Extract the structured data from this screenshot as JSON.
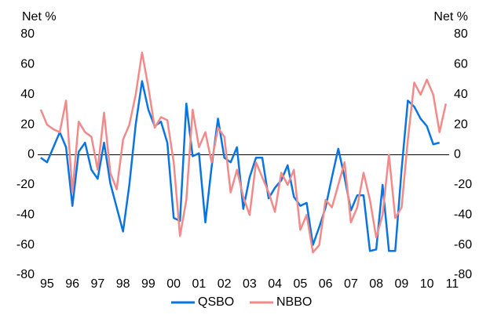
{
  "chart_data": {
    "type": "line",
    "ylabel": "Net %",
    "y2label": "Net %",
    "x": [
      1994.75,
      1995,
      1995.25,
      1995.5,
      1995.75,
      1996,
      1996.25,
      1996.5,
      1996.75,
      1997,
      1997.25,
      1997.5,
      1997.75,
      1998,
      1998.25,
      1998.5,
      1998.75,
      1999,
      1999.25,
      1999.5,
      1999.75,
      2000,
      2000.25,
      2000.5,
      2000.75,
      2001,
      2001.25,
      2001.5,
      2001.75,
      2002,
      2002.25,
      2002.5,
      2002.75,
      2003,
      2003.25,
      2003.5,
      2003.75,
      2004,
      2004.25,
      2004.5,
      2004.75,
      2005,
      2005.25,
      2005.5,
      2005.75,
      2006,
      2006.25,
      2006.5,
      2006.75,
      2007,
      2007.25,
      2007.5,
      2007.75,
      2008,
      2008.25,
      2008.5,
      2008.75,
      2009,
      2009.25,
      2009.5,
      2009.75,
      2010,
      2010.25,
      2010.5,
      2010.75
    ],
    "series": [
      {
        "name": "QSBO",
        "color": "#0a74e0",
        "values": [
          -2,
          -5,
          5,
          15,
          5,
          -34,
          2,
          8,
          -10,
          -16,
          8,
          -19,
          -35,
          -51,
          -20,
          20,
          49,
          30,
          19,
          22,
          8,
          -42,
          -44,
          34,
          -1,
          1,
          -45,
          -8,
          24,
          -2,
          -5,
          5,
          -36,
          -15,
          -2,
          -2,
          -29,
          -22,
          -17,
          -7,
          -28,
          -34,
          -32,
          -60,
          -48,
          -35,
          -15,
          4,
          -15,
          -37,
          -27,
          -27,
          -64,
          -63,
          -20,
          -64,
          -64,
          -10,
          36,
          32,
          24,
          19,
          7,
          8,
          null
        ]
      },
      {
        "name": "NBBO",
        "color": "#f28a8a",
        "values": [
          30,
          20,
          17,
          15,
          36,
          -25,
          22,
          15,
          12,
          -10,
          28,
          -12,
          -23,
          10,
          20,
          40,
          68,
          45,
          18,
          25,
          23,
          -5,
          -54,
          -30,
          30,
          5,
          15,
          -5,
          18,
          12,
          -25,
          -10,
          -28,
          -40,
          -5,
          -15,
          -25,
          -38,
          -12,
          -20,
          -10,
          -50,
          -40,
          -65,
          -60,
          -30,
          -35,
          -20,
          -5,
          -45,
          -35,
          -12,
          -30,
          -55,
          -40,
          0,
          -42,
          -35,
          10,
          48,
          40,
          50,
          40,
          15,
          34
        ]
      }
    ],
    "xlim": [
      1994.63,
      2010.88
    ],
    "xticks": [
      {
        "value": 1995,
        "label": "95"
      },
      {
        "value": 1996,
        "label": "96"
      },
      {
        "value": 1997,
        "label": "97"
      },
      {
        "value": 1998,
        "label": "98"
      },
      {
        "value": 1999,
        "label": "99"
      },
      {
        "value": 2000,
        "label": "00"
      },
      {
        "value": 2001,
        "label": "01"
      },
      {
        "value": 2002,
        "label": "02"
      },
      {
        "value": 2003,
        "label": "03"
      },
      {
        "value": 2004,
        "label": "04"
      },
      {
        "value": 2005,
        "label": "05"
      },
      {
        "value": 2006,
        "label": "06"
      },
      {
        "value": 2007,
        "label": "07"
      },
      {
        "value": 2008,
        "label": "08"
      },
      {
        "value": 2009,
        "label": "09"
      },
      {
        "value": 2010,
        "label": "10"
      },
      {
        "value": 2011,
        "label": "11"
      }
    ],
    "ylim": [
      -80,
      80
    ],
    "yticks": [
      -80,
      -60,
      -40,
      -20,
      0,
      20,
      40,
      60,
      80
    ],
    "y2lim": [
      -80,
      80
    ],
    "y2ticks": [
      -80,
      -60,
      -40,
      -20,
      0,
      20,
      40,
      60,
      80
    ],
    "legend": "bottom"
  }
}
